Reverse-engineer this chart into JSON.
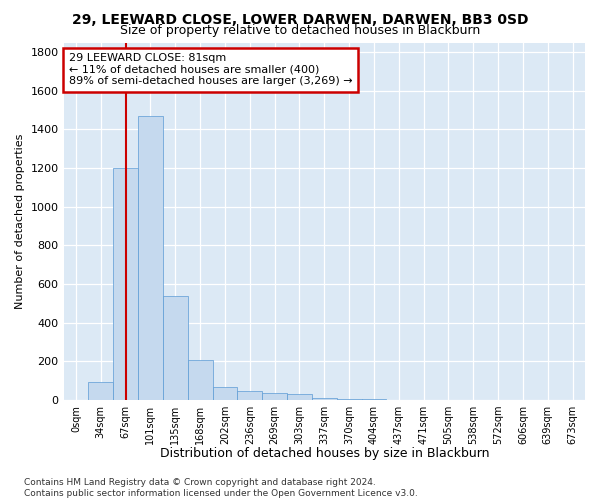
{
  "title": "29, LEEWARD CLOSE, LOWER DARWEN, DARWEN, BB3 0SD",
  "subtitle": "Size of property relative to detached houses in Blackburn",
  "xlabel": "Distribution of detached houses by size in Blackburn",
  "ylabel": "Number of detached properties",
  "bar_labels": [
    "0sqm",
    "34sqm",
    "67sqm",
    "101sqm",
    "135sqm",
    "168sqm",
    "202sqm",
    "236sqm",
    "269sqm",
    "303sqm",
    "337sqm",
    "370sqm",
    "404sqm",
    "437sqm",
    "471sqm",
    "505sqm",
    "538sqm",
    "572sqm",
    "606sqm",
    "639sqm",
    "673sqm"
  ],
  "bar_values": [
    0,
    90,
    1200,
    1470,
    540,
    205,
    65,
    48,
    38,
    28,
    12,
    5,
    2,
    0,
    0,
    0,
    0,
    0,
    0,
    0,
    0
  ],
  "bar_fill_color": "#c5d9ee",
  "bar_edge_color": "#5b9bd5",
  "bg_color": "#dce9f5",
  "grid_color": "#ffffff",
  "annotation_line1": "29 LEEWARD CLOSE: 81sqm",
  "annotation_line2": "← 11% of detached houses are smaller (400)",
  "annotation_line3": "89% of semi-detached houses are larger (3,269) →",
  "ann_box_fc": "#ffffff",
  "ann_box_ec": "#cc0000",
  "vline_color": "#cc0000",
  "vline_x": 2.0,
  "ylim": [
    0,
    1850
  ],
  "yticks": [
    0,
    200,
    400,
    600,
    800,
    1000,
    1200,
    1400,
    1600,
    1800
  ],
  "footer": "Contains HM Land Registry data © Crown copyright and database right 2024.\nContains public sector information licensed under the Open Government Licence v3.0."
}
